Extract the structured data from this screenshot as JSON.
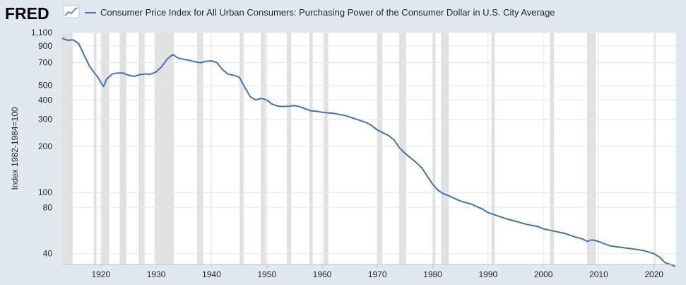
{
  "header": {
    "logo_text": "FRED",
    "logo_icon": "trend-line-icon",
    "legend_label": "Consumer Price Index for All Urban Consumers: Purchasing Power of the Consumer Dollar in U.S. City Average"
  },
  "colors": {
    "background": "#e1e9f0",
    "plot_background": "#ffffff",
    "recession": "#e1e1e1",
    "series": "#4572a7",
    "grid": "#e6e6e6"
  },
  "chart_data": {
    "type": "line",
    "title": "",
    "xlabel": "",
    "ylabel": "Index 1982-1984=100",
    "y_scale": "log",
    "xlim": [
      1913,
      2024
    ],
    "ylim": [
      34,
      1100
    ],
    "y_ticks": [
      1100,
      900,
      700,
      500,
      400,
      300,
      200,
      100,
      80,
      40
    ],
    "y_tick_labels": [
      "1,100",
      "900",
      "700",
      "500",
      "400",
      "300",
      "200",
      "100",
      "80",
      "40"
    ],
    "x_ticks": [
      1920,
      1930,
      1940,
      1950,
      1960,
      1970,
      1980,
      1990,
      2000,
      2010,
      2020
    ],
    "x_tick_labels": [
      "1920",
      "1930",
      "1940",
      "1950",
      "1960",
      "1970",
      "1980",
      "1990",
      "2000",
      "2010",
      "2020"
    ],
    "grid": true,
    "recessions": [
      [
        1913.0,
        1914.9
      ],
      [
        1918.7,
        1919.2
      ],
      [
        1920.1,
        1921.5
      ],
      [
        1923.4,
        1924.6
      ],
      [
        1926.8,
        1927.9
      ],
      [
        1929.7,
        1933.2
      ],
      [
        1937.4,
        1938.5
      ],
      [
        1945.1,
        1945.8
      ],
      [
        1948.9,
        1949.8
      ],
      [
        1953.6,
        1954.4
      ],
      [
        1957.7,
        1958.3
      ],
      [
        1960.3,
        1961.1
      ],
      [
        1969.9,
        1970.9
      ],
      [
        1973.9,
        1975.2
      ],
      [
        1980.0,
        1980.5
      ],
      [
        1981.5,
        1982.9
      ],
      [
        1990.6,
        1991.2
      ],
      [
        2001.2,
        2001.9
      ],
      [
        2007.9,
        2009.5
      ],
      [
        2020.1,
        2020.3
      ]
    ],
    "series": [
      {
        "name": "Consumer Price Index for All Urban Consumers: Purchasing Power of the Consumer Dollar in U.S. City Average",
        "x": [
          1913.0,
          1914.0,
          1915.0,
          1916.0,
          1917.0,
          1918.0,
          1919.0,
          1919.5,
          1920.0,
          1920.5,
          1921.0,
          1922.0,
          1923.0,
          1924.0,
          1925.0,
          1926.0,
          1927.0,
          1928.0,
          1929.0,
          1930.0,
          1931.0,
          1932.0,
          1933.0,
          1933.5,
          1934.0,
          1935.0,
          1936.0,
          1937.0,
          1938.0,
          1939.0,
          1940.0,
          1941.0,
          1942.0,
          1943.0,
          1944.0,
          1945.0,
          1946.0,
          1947.0,
          1948.0,
          1949.0,
          1950.0,
          1951.0,
          1952.0,
          1953.0,
          1954.0,
          1955.0,
          1956.0,
          1957.0,
          1958.0,
          1959.0,
          1960.0,
          1962.0,
          1964.0,
          1966.0,
          1968.0,
          1969.0,
          1970.0,
          1971.0,
          1972.0,
          1973.0,
          1974.0,
          1975.0,
          1976.0,
          1977.0,
          1978.0,
          1979.0,
          1980.0,
          1981.0,
          1982.0,
          1983.0,
          1985.0,
          1987.0,
          1989.0,
          1990.0,
          1991.0,
          1993.0,
          1995.0,
          1997.0,
          1999.0,
          2000.0,
          2001.0,
          2002.0,
          2004.0,
          2006.0,
          2007.0,
          2008.0,
          2008.5,
          2009.0,
          2010.0,
          2012.0,
          2014.0,
          2016.0,
          2018.0,
          2019.0,
          2020.0,
          2021.0,
          2022.0,
          2023.0,
          2023.8
        ],
        "y": [
          1010,
          980,
          985,
          930,
          780,
          660,
          590,
          560,
          520,
          490,
          545,
          590,
          600,
          600,
          580,
          570,
          585,
          590,
          590,
          610,
          660,
          740,
          790,
          770,
          750,
          735,
          725,
          710,
          700,
          715,
          720,
          700,
          630,
          590,
          580,
          565,
          485,
          420,
          400,
          410,
          400,
          375,
          365,
          363,
          365,
          368,
          362,
          350,
          340,
          338,
          333,
          328,
          318,
          302,
          285,
          272,
          255,
          245,
          235,
          220,
          195,
          180,
          168,
          157,
          145,
          128,
          113,
          103,
          98,
          95,
          88,
          84,
          78,
          74,
          72,
          68,
          65,
          62,
          60,
          58,
          57,
          56,
          54,
          51,
          50,
          48,
          49,
          49,
          48,
          45,
          44,
          43,
          42,
          41,
          40,
          38,
          35,
          34,
          33
        ]
      }
    ]
  }
}
